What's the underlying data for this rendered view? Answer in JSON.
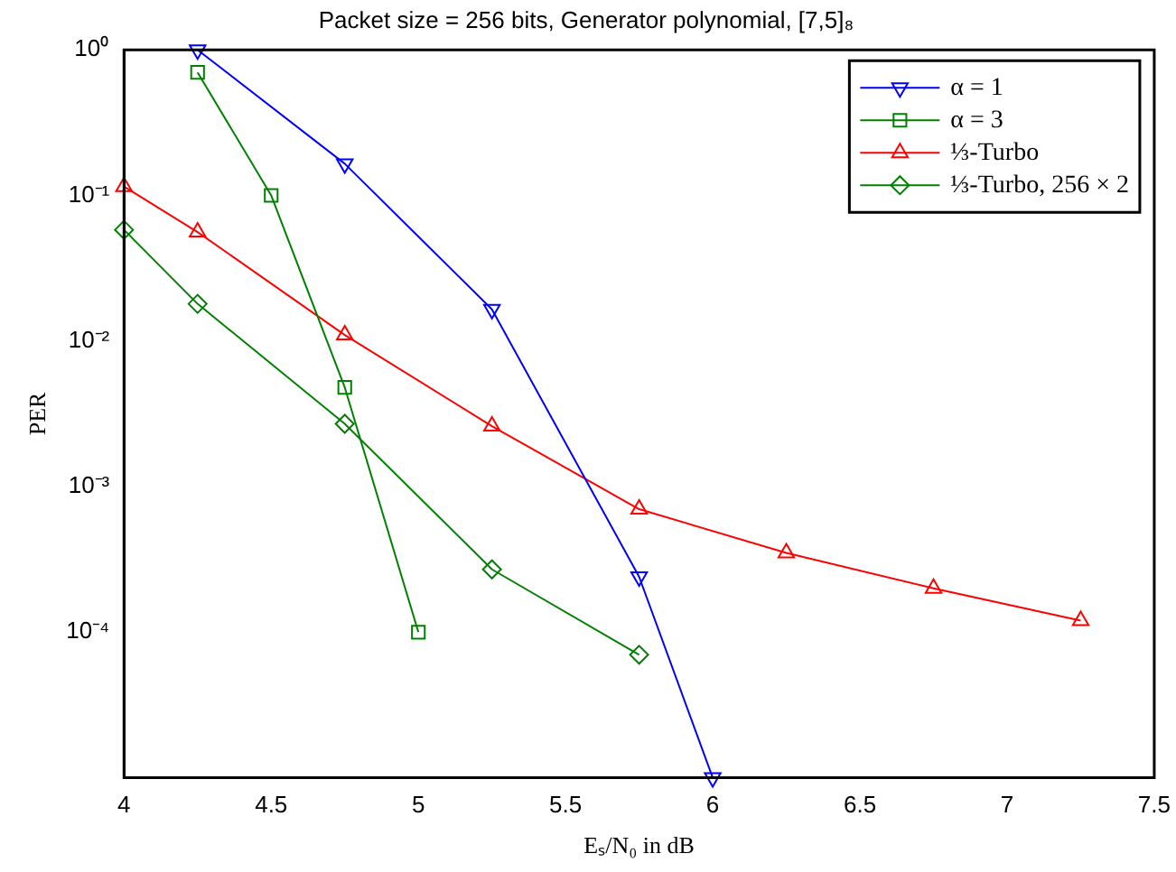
{
  "chart_data": {
    "type": "line",
    "title": "Packet size = 256 bits, Generator polynomial, [7,5]₈",
    "xlabel": "Eₛ/N₀ in dB",
    "ylabel": "PER",
    "series": [
      {
        "name": "α = 1",
        "color": "#0000ff",
        "marker": "triangle-down",
        "x": [
          4.25,
          4.75,
          5.25,
          5.75,
          6
        ],
        "values": [
          1,
          0.165,
          0.0165,
          0.00024,
          1e-05
        ]
      },
      {
        "name": "α = 3",
        "color": "#008000",
        "marker": "square",
        "x": [
          4.25,
          4.5,
          4.75,
          5
        ],
        "values": [
          0.7,
          0.1,
          0.0048,
          0.0001
        ]
      },
      {
        "name": "⅓-Turbo",
        "color": "#ff0000",
        "marker": "triangle",
        "x": [
          4,
          4.25,
          4.75,
          5.25,
          5.75,
          6.25,
          6.75,
          7.25
        ],
        "values": [
          0.115,
          0.056,
          0.011,
          0.0026,
          0.0007,
          0.00035,
          0.0002,
          0.00012
        ]
      },
      {
        "name": "⅓-Turbo, 256 × 2",
        "color": "#008000",
        "marker": "diamond",
        "x": [
          4,
          4.25,
          4.75,
          5.25,
          5.75
        ],
        "values": [
          0.058,
          0.018,
          0.0027,
          0.00027,
          7e-05
        ]
      }
    ],
    "xlim": [
      4,
      7.5
    ],
    "xticks": [
      4,
      4.5,
      5,
      5.5,
      6,
      6.5,
      7,
      7.5
    ],
    "ylim": [
      1e-05,
      1
    ],
    "yticks": [
      {
        "value": 1e-05,
        "label": null
      },
      {
        "value": 0.0001,
        "label": "10⁻⁴"
      },
      {
        "value": 0.001,
        "label": "10⁻³"
      },
      {
        "value": 0.01,
        "label": "10⁻²"
      },
      {
        "value": 0.1,
        "label": "10⁻¹"
      },
      {
        "value": 1,
        "label": "10⁰"
      }
    ],
    "log": "y",
    "grid": false,
    "legend": "top right"
  }
}
